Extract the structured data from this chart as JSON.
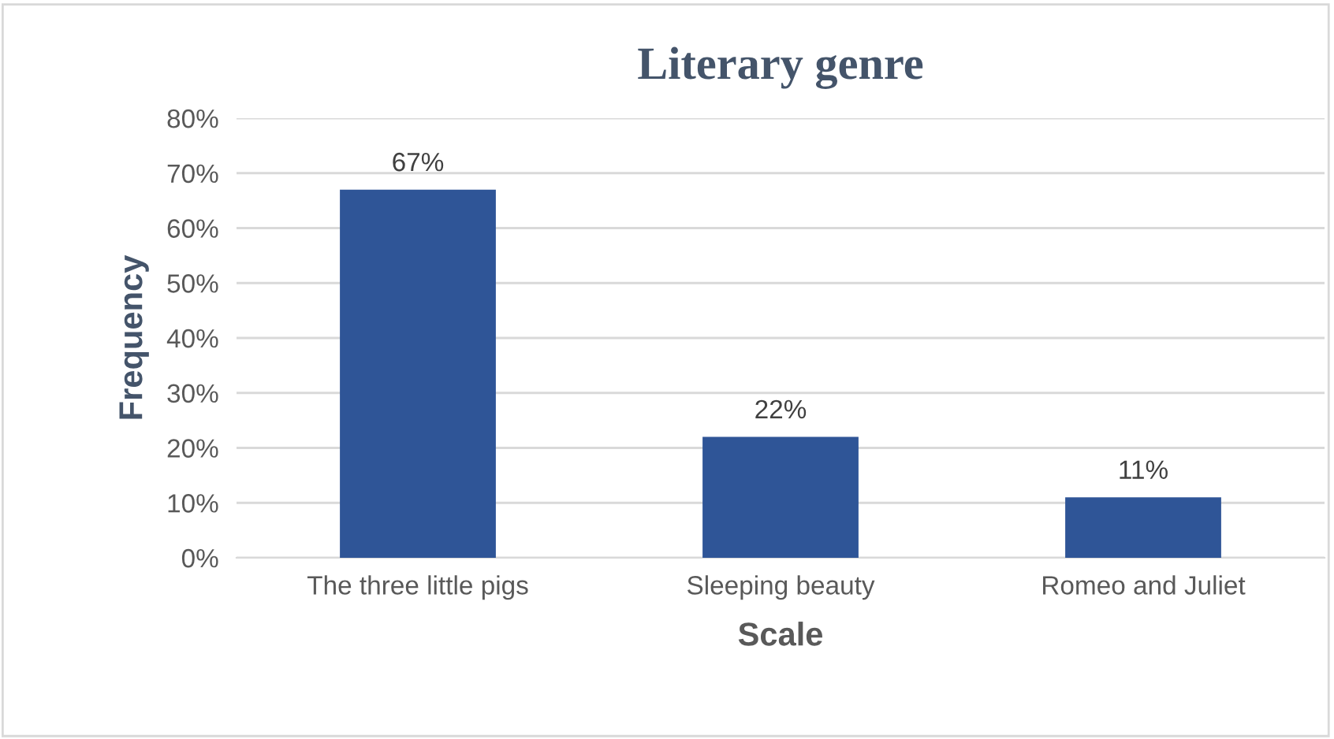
{
  "chart_data": {
    "type": "bar",
    "title": "Literary genre",
    "xlabel": "Scale",
    "ylabel": "Frequency",
    "categories": [
      "The three little pigs",
      "Sleeping beauty",
      "Romeo and Juliet"
    ],
    "values": [
      67,
      22,
      11
    ],
    "value_labels": [
      "67%",
      "22%",
      "11%"
    ],
    "color": "#2f5597",
    "ylim": [
      0,
      80
    ],
    "yticks": [
      {
        "value": 0,
        "label": "0%"
      },
      {
        "value": 10,
        "label": "10%"
      },
      {
        "value": 20,
        "label": "20%"
      },
      {
        "value": 30,
        "label": "30%"
      },
      {
        "value": 40,
        "label": "40%"
      },
      {
        "value": 50,
        "label": "50%"
      },
      {
        "value": 60,
        "label": "60%"
      },
      {
        "value": 70,
        "label": "70%"
      },
      {
        "value": 80,
        "label": "80%"
      }
    ],
    "grid": "y",
    "legend": false
  }
}
